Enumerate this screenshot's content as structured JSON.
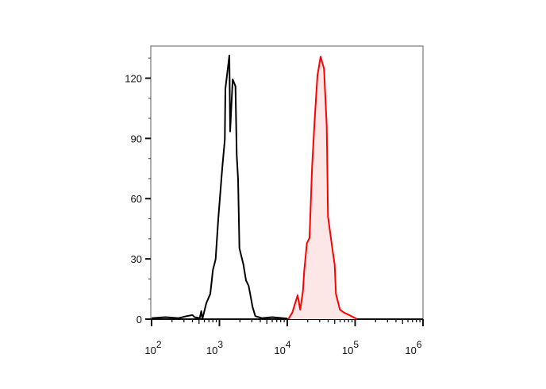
{
  "chart_data": {
    "type": "line",
    "title": "",
    "xlabel": "",
    "ylabel": "",
    "x_scale": "log",
    "xlim": [
      100,
      1000000
    ],
    "ylim": [
      0,
      136
    ],
    "grid": false,
    "x_tick_labels": [
      {
        "base": "10",
        "exp": "2",
        "value": 100
      },
      {
        "base": "10",
        "exp": "3",
        "value": 1000
      },
      {
        "base": "10",
        "exp": "4",
        "value": 10000
      },
      {
        "base": "10",
        "exp": "5",
        "value": 100000
      },
      {
        "base": "10",
        "exp": "6",
        "value": 1000000
      }
    ],
    "y_ticks": [
      0,
      30,
      60,
      90,
      120
    ],
    "y_tick_labels": [
      "0",
      "30",
      "60",
      "90",
      "120"
    ],
    "series": [
      {
        "color": "#000000",
        "fill": "none",
        "x": [
          100,
          160,
          250,
          330,
          400,
          430,
          513,
          540,
          561,
          641,
          733,
          802,
          879,
          960,
          1099,
          1202,
          1225,
          1400,
          1439,
          1570,
          1722,
          1799,
          1884,
          1972,
          2254,
          2466,
          2692,
          3083,
          3381,
          4227,
          6000,
          10000
        ],
        "y": [
          0.5,
          1,
          0.5,
          1.5,
          2,
          1,
          0.5,
          4,
          0,
          8,
          12.6,
          24.5,
          29.8,
          49.7,
          75,
          89.5,
          114.7,
          131.3,
          93.5,
          119.4,
          116,
          81.6,
          69.6,
          35.3,
          27.2,
          19.3,
          16.6,
          6,
          1.5,
          0.5,
          1,
          0.3
        ]
      },
      {
        "color": "#ff0000",
        "fill": "#fde6e6",
        "x": [
          10350,
          11860,
          14190,
          15520,
          16980,
          17740,
          19450,
          21230,
          23230,
          25410,
          27800,
          30970,
          34830,
          38110,
          39810,
          45500,
          49890,
          52120,
          59570,
          68230,
          81660,
          107200
        ],
        "y": [
          0,
          3.3,
          11.9,
          4.7,
          13.9,
          23.9,
          37.8,
          40.5,
          76.3,
          100,
          121.3,
          130.7,
          124.7,
          96.2,
          51.1,
          36.5,
          27.2,
          12.6,
          4.7,
          3.3,
          2,
          0
        ]
      }
    ]
  }
}
